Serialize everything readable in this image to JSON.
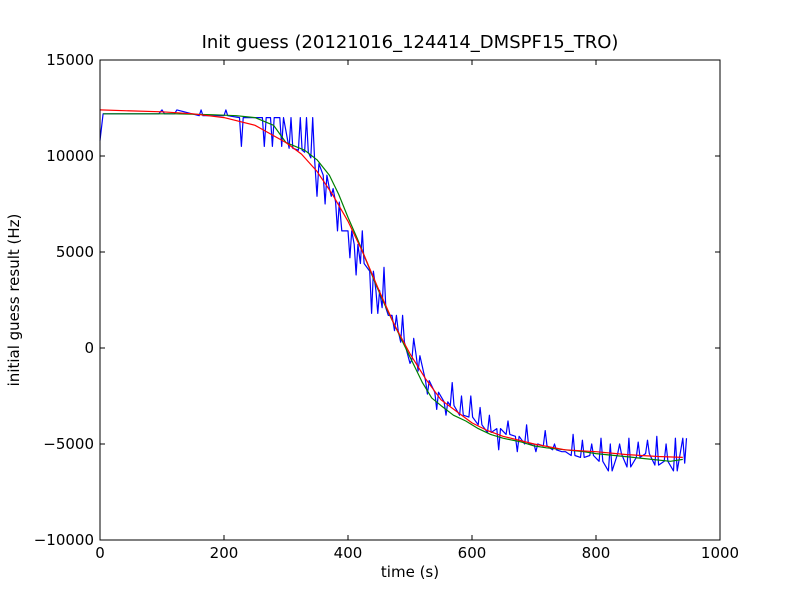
{
  "chart_data": {
    "type": "line",
    "title": "Init guess (20121016_124414_DMSPF15_TRO)",
    "xlabel": "time (s)",
    "ylabel": "initial guess result (Hz)",
    "xlim": [
      0,
      1000
    ],
    "ylim": [
      -10000,
      15000
    ],
    "xticks": [
      0,
      200,
      400,
      600,
      800,
      1000
    ],
    "yticks": [
      -10000,
      -5000,
      0,
      5000,
      10000,
      15000
    ],
    "xtick_labels": [
      "0",
      "200",
      "400",
      "600",
      "800",
      "1000"
    ],
    "ytick_labels": [
      "−10000",
      "−5000",
      "0",
      "5000",
      "10000",
      "15000"
    ],
    "grid": false,
    "legend": "none",
    "colors": {
      "raw": "#0000ff",
      "smoothed": "#008000",
      "fit": "#ff0000"
    },
    "series": [
      {
        "key": "raw",
        "x": [
          0,
          5,
          5,
          60,
          95,
          100,
          104,
          120,
          124,
          160,
          163,
          166,
          200,
          203,
          206,
          225,
          228,
          231,
          250,
          262,
          265,
          268,
          275,
          278,
          281,
          290,
          293,
          296,
          305,
          308,
          311,
          320,
          323,
          326,
          330,
          333,
          336,
          340,
          343,
          346,
          350,
          353,
          360,
          363,
          366,
          370,
          373,
          376,
          380,
          383,
          386,
          390,
          393,
          400,
          403,
          406,
          410,
          413,
          416,
          420,
          423,
          426,
          435,
          438,
          441,
          445,
          448,
          451,
          455,
          458,
          461,
          465,
          468,
          471,
          475,
          478,
          481,
          485,
          488,
          491,
          500,
          503,
          506,
          510,
          513,
          516,
          525,
          528,
          531,
          540,
          543,
          546,
          555,
          558,
          561,
          565,
          568,
          571,
          580,
          583,
          586,
          595,
          598,
          601,
          610,
          613,
          616,
          625,
          628,
          631,
          640,
          643,
          646,
          655,
          658,
          661,
          670,
          673,
          676,
          685,
          688,
          691,
          700,
          703,
          706,
          715,
          718,
          721,
          730,
          733,
          736,
          745,
          748,
          751,
          760,
          763,
          766,
          775,
          778,
          781,
          790,
          793,
          796,
          805,
          808,
          811,
          820,
          823,
          826,
          835,
          838,
          841,
          850,
          853,
          856,
          865,
          868,
          871,
          880,
          883,
          886,
          895,
          898,
          901,
          910,
          913,
          916,
          925,
          928,
          931,
          940,
          943,
          946
        ],
        "y": [
          10800,
          12200,
          12200,
          12200,
          12200,
          12400,
          12200,
          12200,
          12400,
          12100,
          12400,
          12100,
          12100,
          12400,
          12100,
          12000,
          10500,
          12000,
          12000,
          12000,
          10500,
          12000,
          12000,
          10500,
          12000,
          12000,
          10500,
          12000,
          10400,
          12000,
          10400,
          10300,
          12000,
          10300,
          10200,
          12000,
          10200,
          9900,
          12000,
          9900,
          7900,
          9600,
          9000,
          7500,
          9000,
          8300,
          7900,
          8300,
          7600,
          6100,
          7600,
          6100,
          6100,
          6100,
          4700,
          6100,
          5400,
          3800,
          5400,
          4400,
          6100,
          4400,
          4000,
          1800,
          4000,
          3000,
          1800,
          3000,
          2100,
          4200,
          2100,
          1700,
          1700,
          1700,
          900,
          1700,
          900,
          300,
          1700,
          300,
          -800,
          -600,
          500,
          -400,
          -1200,
          -400,
          -1700,
          -2400,
          -1700,
          -2300,
          -3200,
          -2300,
          -2800,
          -3500,
          -2800,
          -3000,
          -1800,
          -3000,
          -3500,
          -2500,
          -3500,
          -3600,
          -2500,
          -3600,
          -4000,
          -3100,
          -4000,
          -4400,
          -3500,
          -4400,
          -4200,
          -5300,
          -4200,
          -4500,
          -3800,
          -4500,
          -4600,
          -5400,
          -4600,
          -5000,
          -4000,
          -5000,
          -5000,
          -5400,
          -5000,
          -5100,
          -4300,
          -5100,
          -5300,
          -5000,
          -5300,
          -5400,
          -5400,
          -5400,
          -5600,
          -4500,
          -5600,
          -5700,
          -4800,
          -5700,
          -5600,
          -5000,
          -5600,
          -5900,
          -4700,
          -5900,
          -6400,
          -5000,
          -6400,
          -5500,
          -5000,
          -5500,
          -6200,
          -4700,
          -6200,
          -5700,
          -4900,
          -5700,
          -5500,
          -4800,
          -5500,
          -6100,
          -4600,
          -6100,
          -5900,
          -5000,
          -5900,
          -6400,
          -4700,
          -6400,
          -4700,
          -6000,
          -4700
        ]
      },
      {
        "key": "smoothed",
        "x": [
          5,
          60,
          120,
          180,
          220,
          250,
          280,
          300,
          330,
          350,
          370,
          385,
          400,
          415,
          430,
          445,
          460,
          475,
          490,
          505,
          520,
          535,
          550,
          570,
          590,
          610,
          630,
          650,
          680,
          700,
          720,
          750,
          780,
          800,
          830,
          860,
          890,
          920,
          940
        ],
        "y": [
          12200,
          12200,
          12200,
          12150,
          12100,
          12000,
          11600,
          10700,
          10300,
          9800,
          9000,
          8000,
          6800,
          5700,
          4500,
          3300,
          2200,
          1200,
          200,
          -800,
          -1800,
          -2600,
          -3000,
          -3500,
          -3800,
          -4200,
          -4500,
          -4700,
          -4900,
          -5100,
          -5200,
          -5300,
          -5400,
          -5500,
          -5600,
          -5700,
          -5800,
          -5900,
          -5800
        ]
      },
      {
        "key": "fit",
        "model": "logistic",
        "upper": 12500,
        "lower": -5700,
        "midpoint": 460,
        "scale": 45,
        "x": [
          0,
          50,
          100,
          150,
          200,
          250,
          300,
          325,
          350,
          375,
          400,
          425,
          450,
          475,
          500,
          525,
          550,
          575,
          600,
          625,
          650,
          700,
          750,
          800,
          850,
          900,
          940
        ],
        "y": [
          12400,
          12350,
          12300,
          12200,
          12000,
          11600,
          10700,
          10100,
          9200,
          8000,
          6600,
          4900,
          3000,
          1200,
          -300,
          -1600,
          -2700,
          -3300,
          -3900,
          -4300,
          -4600,
          -5000,
          -5300,
          -5400,
          -5550,
          -5650,
          -5700
        ]
      }
    ]
  }
}
